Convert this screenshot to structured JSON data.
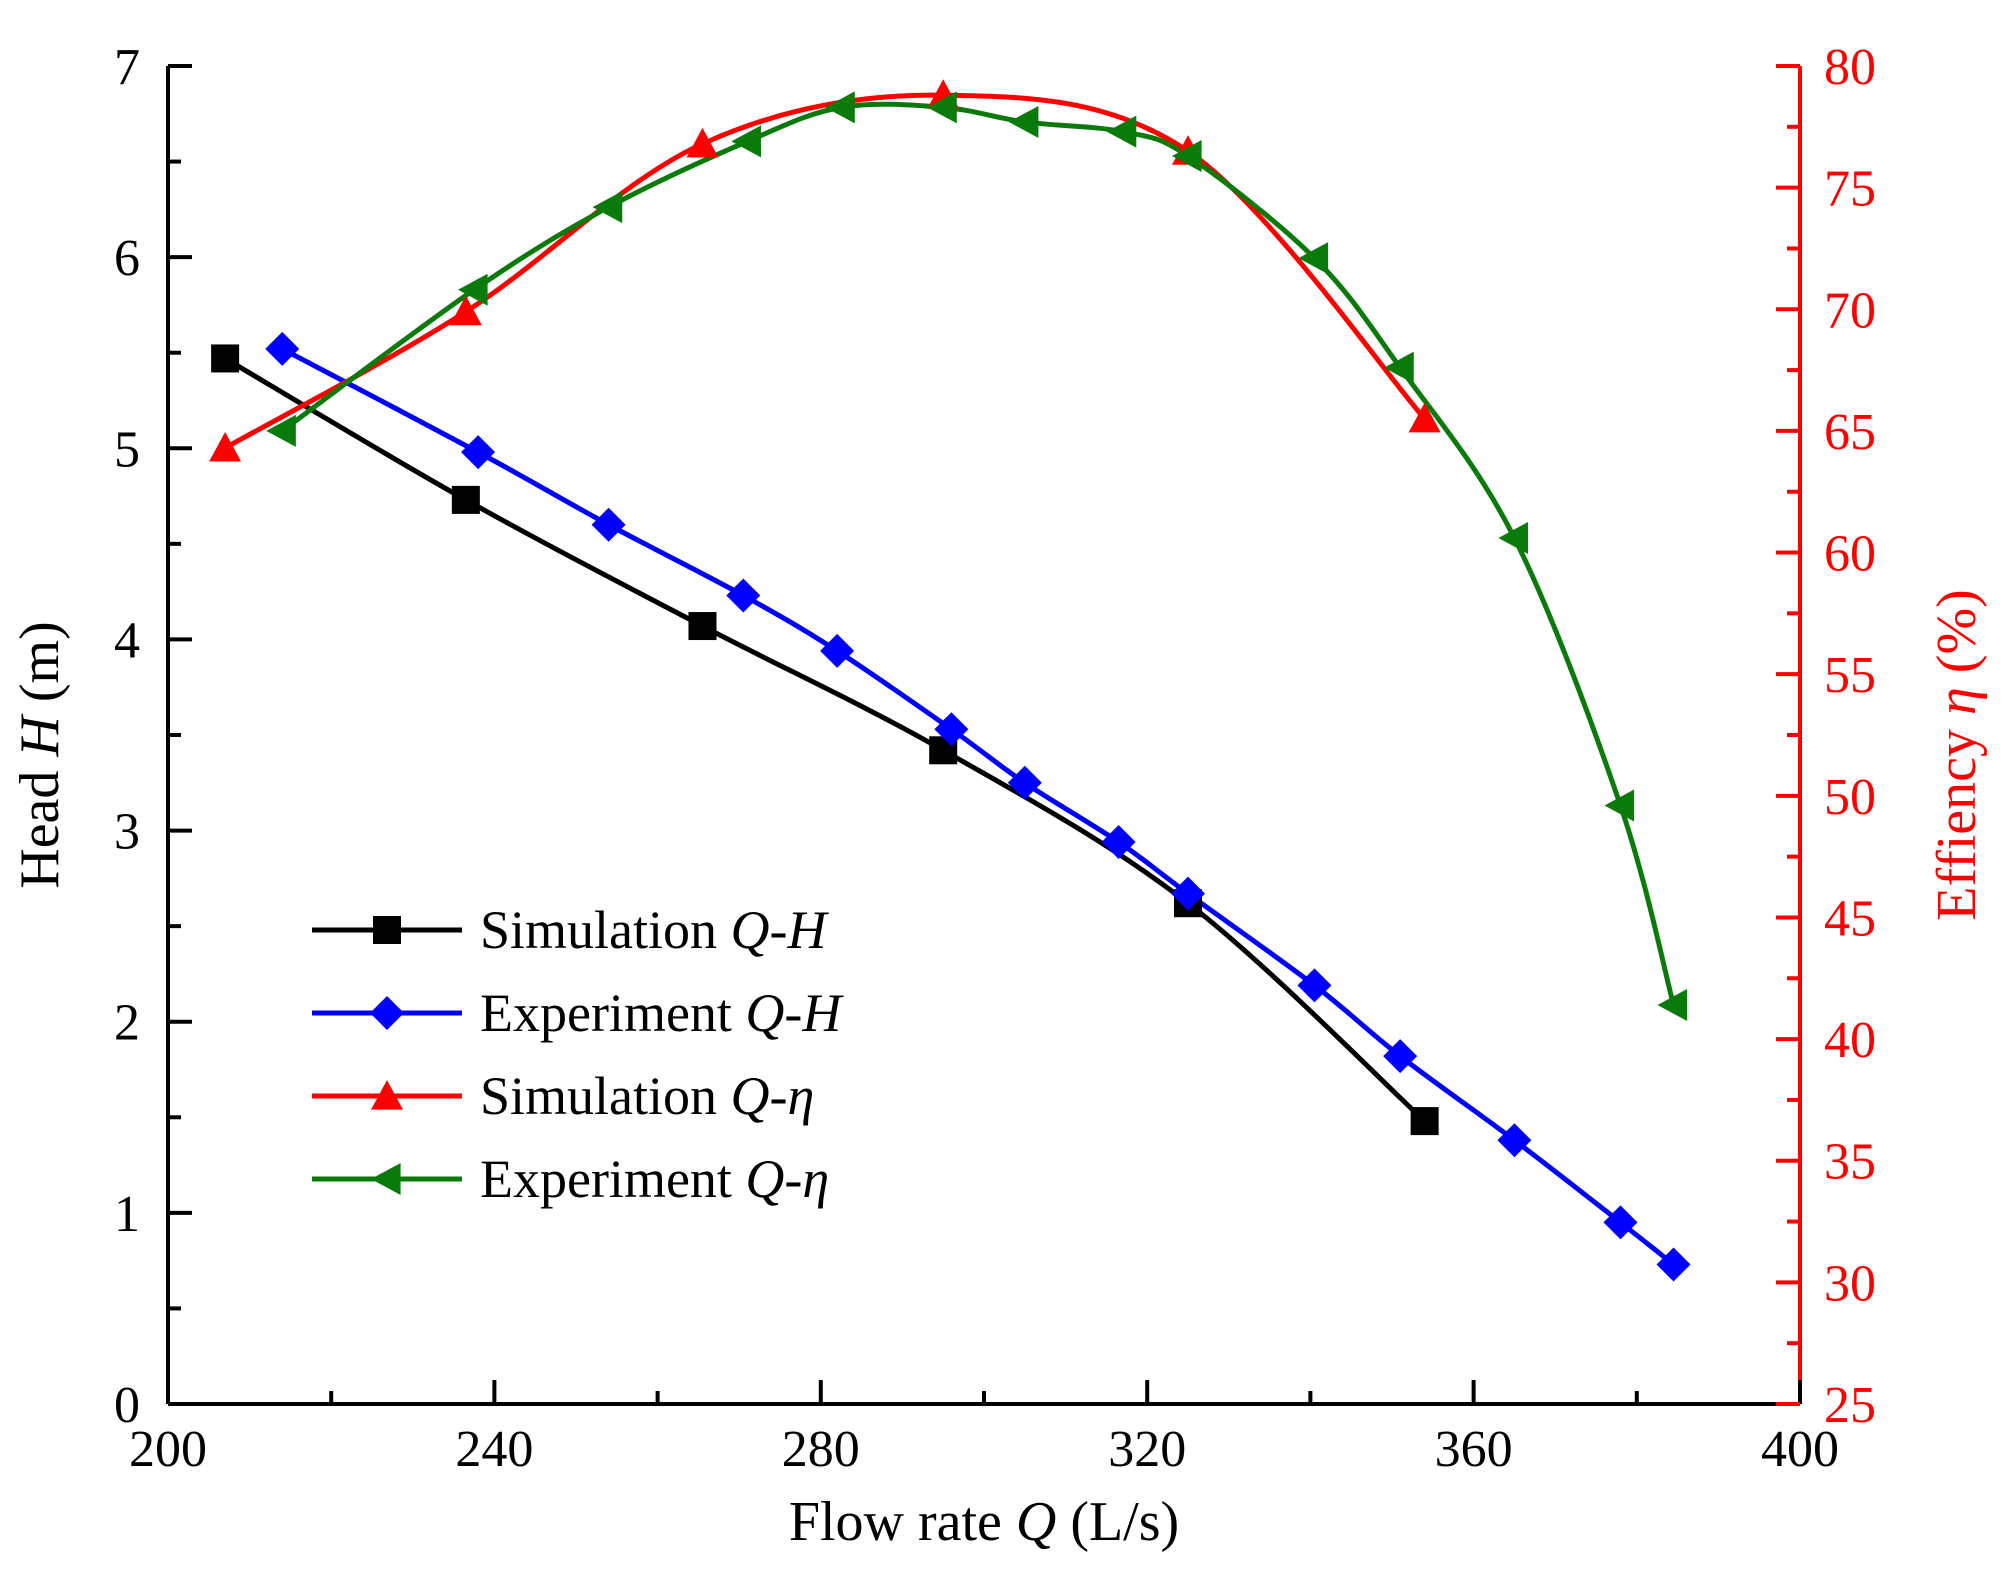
{
  "chart_data": {
    "type": "line",
    "title": "",
    "xlabel": {
      "text": "Flow rate ",
      "symbol": "Q",
      "unit": " (L/s)"
    },
    "ylabel_left": {
      "text": "Head  ",
      "symbol": "H",
      "unit": " (m)"
    },
    "ylabel_right": {
      "text": "Effiency ",
      "symbol": "η",
      "unit": " (%)"
    },
    "xlim": [
      200,
      400
    ],
    "ylim_left": [
      0,
      7
    ],
    "ylim_right": [
      25,
      80
    ],
    "x_ticks": [
      "200",
      "240",
      "280",
      "320",
      "360",
      "400"
    ],
    "y_left_ticks": [
      "0",
      "1",
      "2",
      "3",
      "4",
      "5",
      "6",
      "7"
    ],
    "y_right_ticks": [
      "25",
      "30",
      "35",
      "40",
      "45",
      "50",
      "55",
      "60",
      "65",
      "70",
      "75",
      "80"
    ],
    "right_axis_color": "#ff0000",
    "legend_position": "lower-left",
    "series": [
      {
        "name": "Simulation Q-H",
        "label": "Simulation ",
        "label_italic": "Q-H",
        "axis": "left",
        "color": "#000000",
        "marker": "square",
        "x": [
          207,
          236.5,
          265.5,
          295,
          325,
          354
        ],
        "y": [
          5.47,
          4.73,
          4.07,
          3.42,
          2.62,
          1.48
        ]
      },
      {
        "name": "Experiment Q-H",
        "label": "Experiment ",
        "label_italic": "Q-H",
        "axis": "left",
        "color": "#0000ff",
        "marker": "diamond",
        "x": [
          214,
          238,
          254,
          270.5,
          282,
          296,
          305,
          316.5,
          325,
          340.5,
          351,
          365,
          378,
          384.5
        ],
        "y": [
          5.52,
          4.98,
          4.6,
          4.23,
          3.94,
          3.53,
          3.25,
          2.94,
          2.67,
          2.19,
          1.82,
          1.38,
          0.95,
          0.73
        ]
      },
      {
        "name": "Simulation Q-η",
        "label": "Simulation ",
        "label_italic": "Q-η",
        "axis": "right",
        "color": "#ff0000",
        "marker": "triangle-up",
        "x": [
          207,
          236.5,
          265.5,
          295,
          325,
          354
        ],
        "y": [
          64.3,
          69.9,
          76.8,
          78.8,
          76.5,
          65.5
        ]
      },
      {
        "name": "Experiment Q-η",
        "label": "Experiment ",
        "label_italic": "Q-η",
        "axis": "right",
        "color": "#0a7a0a",
        "marker": "triangle-left",
        "x": [
          214,
          237.5,
          254,
          271,
          282.5,
          295,
          305,
          317,
          325,
          340.5,
          351,
          365,
          378,
          384.5
        ],
        "y": [
          65.0,
          70.8,
          74.2,
          76.9,
          78.3,
          78.3,
          77.7,
          77.3,
          76.3,
          72.1,
          67.6,
          60.6,
          49.6,
          41.4
        ]
      }
    ]
  }
}
